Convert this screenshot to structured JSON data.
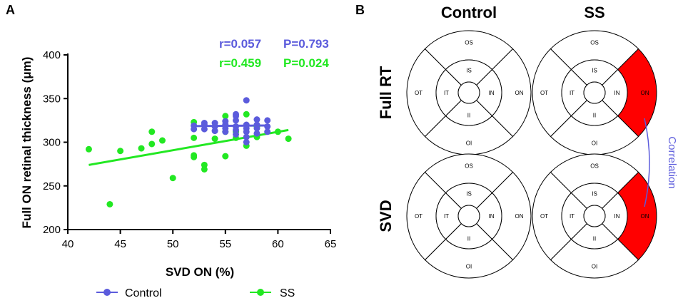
{
  "panel_a": {
    "letter": "A"
  },
  "panel_b": {
    "letter": "B",
    "columns": [
      "Control",
      "SS"
    ],
    "rows": [
      "Full RT",
      "SVD"
    ],
    "sector_labels": {
      "OS": "OS",
      "OI": "OI",
      "OT": "OT",
      "ON": "ON",
      "IS": "IS",
      "II": "II",
      "IT": "IT",
      "IN": "IN"
    },
    "highlighted": [
      {
        "row": 0,
        "col": 1,
        "sector": "ON"
      },
      {
        "row": 1,
        "col": 1,
        "sector": "ON"
      }
    ],
    "highlight_color": "#ff0000",
    "correlation_label": "Correlation",
    "correlation_color": "#5b5bdc"
  },
  "stats": [
    {
      "r": "r=0.057",
      "p": "P=0.793",
      "color": "#5b5bdc"
    },
    {
      "r": "r=0.459",
      "p": "P=0.024",
      "color": "#22e822"
    }
  ],
  "chart_data": {
    "type": "scatter",
    "title": "",
    "xlabel": "SVD ON (%)",
    "ylabel": "Full ON retinal thickness (μm)",
    "xlim": [
      40,
      65
    ],
    "ylim": [
      200,
      400
    ],
    "xticks": [
      40,
      45,
      50,
      55,
      60,
      65
    ],
    "yticks": [
      200,
      250,
      300,
      350,
      400
    ],
    "legend_position": "bottom",
    "series": [
      {
        "name": "Control",
        "color": "#5b5bdc",
        "points": [
          [
            52,
            319
          ],
          [
            52,
            315
          ],
          [
            53,
            320
          ],
          [
            53,
            315
          ],
          [
            53,
            322
          ],
          [
            54,
            318
          ],
          [
            54,
            313
          ],
          [
            54,
            322
          ],
          [
            55,
            320
          ],
          [
            55,
            316
          ],
          [
            55,
            312
          ],
          [
            55,
            324
          ],
          [
            56,
            330
          ],
          [
            56,
            325
          ],
          [
            56,
            318
          ],
          [
            56,
            314
          ],
          [
            56,
            309
          ],
          [
            56,
            332
          ],
          [
            57,
            348
          ],
          [
            57,
            320
          ],
          [
            57,
            316
          ],
          [
            57,
            312
          ],
          [
            57,
            306
          ],
          [
            57,
            300
          ],
          [
            58,
            326
          ],
          [
            58,
            320
          ],
          [
            58,
            316
          ],
          [
            58,
            310
          ],
          [
            59,
            325
          ],
          [
            59,
            318
          ],
          [
            59,
            312
          ]
        ],
        "fit": [
          [
            52,
            318.5
          ],
          [
            59,
            319.2
          ]
        ]
      },
      {
        "name": "SS",
        "color": "#22e822",
        "points": [
          [
            42,
            292
          ],
          [
            44,
            229
          ],
          [
            45,
            290
          ],
          [
            47,
            293
          ],
          [
            48,
            312
          ],
          [
            48,
            298
          ],
          [
            49,
            302
          ],
          [
            50,
            259
          ],
          [
            52,
            323
          ],
          [
            52,
            305
          ],
          [
            52,
            285
          ],
          [
            52,
            283
          ],
          [
            53,
            274
          ],
          [
            53,
            269
          ],
          [
            54,
            304
          ],
          [
            55,
            330
          ],
          [
            55,
            312
          ],
          [
            55,
            284
          ],
          [
            56,
            312
          ],
          [
            56,
            305
          ],
          [
            57,
            332
          ],
          [
            57,
            296
          ],
          [
            58,
            318
          ],
          [
            58,
            306
          ],
          [
            60,
            312
          ],
          [
            61,
            304
          ]
        ],
        "fit": [
          [
            42,
            274
          ],
          [
            61,
            314
          ]
        ]
      }
    ]
  }
}
